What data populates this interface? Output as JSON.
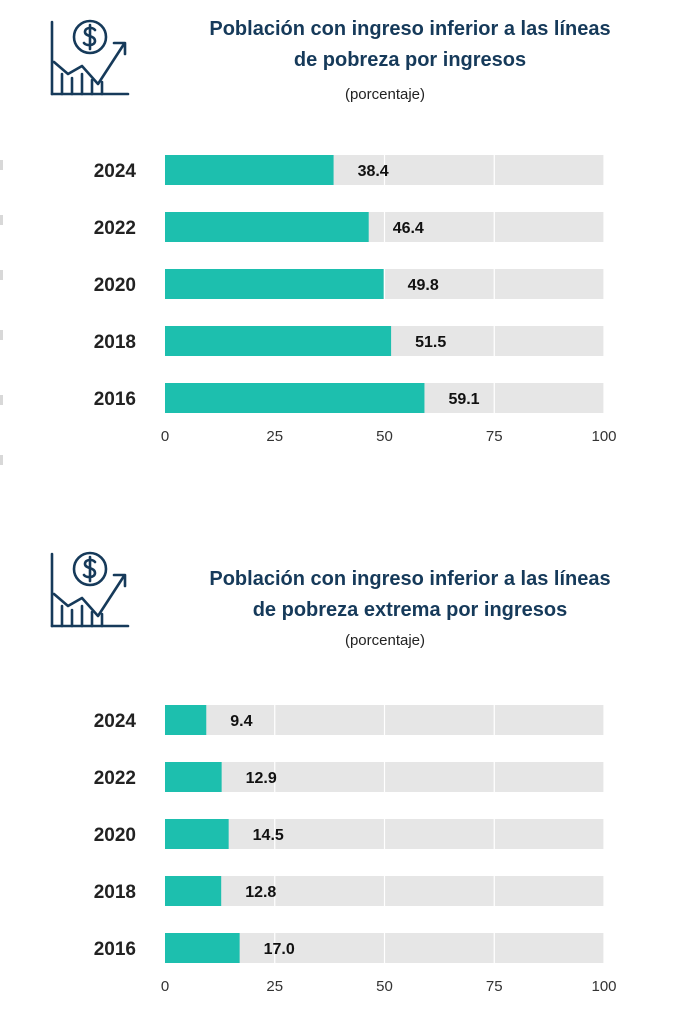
{
  "colors": {
    "bar": "#1dbfae",
    "track": "#e6e6e6",
    "title": "#163a5a",
    "icon": "#163a5a"
  },
  "icon": "dollar-growth-chart-icon",
  "chart_data": [
    {
      "type": "bar",
      "orientation": "horizontal",
      "title": "Población con ingreso inferior a las líneas de pobreza por ingresos",
      "title_lines": [
        "Población con ingreso inferior a las líneas",
        "de pobreza por ingresos"
      ],
      "subtitle": "(porcentaje)",
      "categories": [
        "2024",
        "2022",
        "2020",
        "2018",
        "2016"
      ],
      "values": [
        38.4,
        46.4,
        49.8,
        51.5,
        59.1
      ],
      "value_labels": [
        "38.4",
        "46.4",
        "49.8",
        "51.5",
        "59.1"
      ],
      "xlim": [
        0,
        100
      ],
      "xticks": [
        0,
        25,
        50,
        75,
        100
      ],
      "grid": true
    },
    {
      "type": "bar",
      "orientation": "horizontal",
      "title": "Población con ingreso inferior a las líneas de pobreza extrema por ingresos",
      "title_lines": [
        "Población con ingreso inferior a las líneas",
        "de pobreza extrema por ingresos"
      ],
      "subtitle": "(porcentaje)",
      "categories": [
        "2024",
        "2022",
        "2020",
        "2018",
        "2016"
      ],
      "values": [
        9.4,
        12.9,
        14.5,
        12.8,
        17.0
      ],
      "value_labels": [
        "9.4",
        "12.9",
        "14.5",
        "12.8",
        "17.0"
      ],
      "xlim": [
        0,
        100
      ],
      "xticks": [
        0,
        25,
        50,
        75,
        100
      ],
      "grid": true
    }
  ]
}
